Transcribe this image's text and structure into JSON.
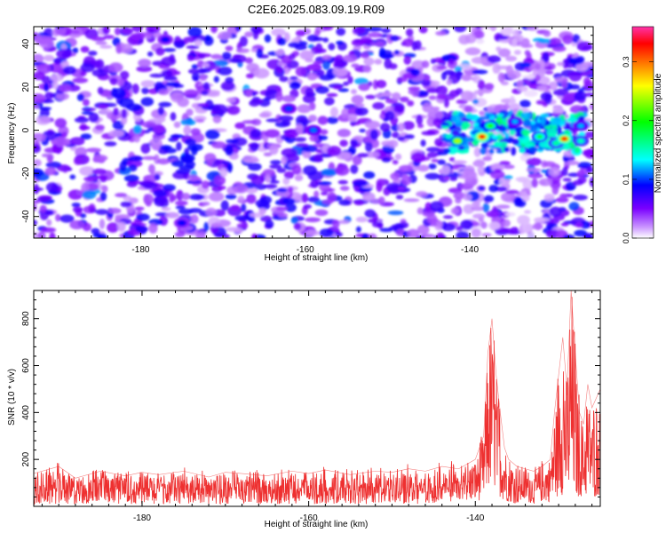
{
  "title": "C2E6.2025.083.09.19.R09",
  "chart_data": [
    {
      "type": "heatmap",
      "xlabel": "Height of straight line (km)",
      "ylabel": "Frequency (Hz)",
      "xlim": [
        -193,
        -125
      ],
      "ylim": [
        -50,
        48
      ],
      "x_ticks": [
        -180,
        -160,
        -140
      ],
      "y_ticks": [
        -40,
        -20,
        0,
        20,
        40
      ],
      "colorbar": {
        "label": "Normalized spectral amplitude",
        "range": [
          0.0,
          0.36
        ],
        "ticks": [
          0.0,
          0.1,
          0.2,
          0.3
        ],
        "tick_labels": [
          "0.0",
          "0.1",
          "0.2",
          "0.3"
        ],
        "colors": [
          "#ffffff",
          "#cc99ff",
          "#7a00ff",
          "#0000ff",
          "#00ffff",
          "#00ff00",
          "#ffff00",
          "#ff8000",
          "#ff0000",
          "#ff33aa"
        ]
      },
      "grid": false,
      "description": "Dense speckled background of weak amplitude (0.02-0.08) across the full range, with a band of strong signal (up to ~0.33) near 0 Hz from about -142 km to -127 km",
      "hotspots": [
        {
          "x": -141.5,
          "y": -5,
          "value": 0.24
        },
        {
          "x": -138.5,
          "y": -3,
          "value": 0.33
        },
        {
          "x": -137.5,
          "y": 2,
          "value": 0.2
        },
        {
          "x": -134.5,
          "y": 4,
          "value": 0.12
        },
        {
          "x": -131.5,
          "y": -3,
          "value": 0.18
        },
        {
          "x": -129.5,
          "y": -6,
          "value": 0.16
        },
        {
          "x": -128.5,
          "y": -4,
          "value": 0.32
        },
        {
          "x": -126.5,
          "y": -5,
          "value": 0.15
        },
        {
          "x": -126.5,
          "y": 2,
          "value": 0.12
        },
        {
          "x": -159,
          "y": 0,
          "value": 0.11
        },
        {
          "x": -162,
          "y": 10,
          "value": 0.1
        },
        {
          "x": -177,
          "y": 42,
          "value": 0.09
        },
        {
          "x": -175,
          "y": -43,
          "value": 0.09
        }
      ]
    },
    {
      "type": "line",
      "xlabel": "Height of straight line (km)",
      "ylabel": "SNR (10 * v/v)",
      "xlim": [
        -193,
        -125
      ],
      "ylim": [
        0,
        920
      ],
      "x_ticks": [
        -180,
        -160,
        -140
      ],
      "y_ticks": [
        200,
        400,
        600,
        800
      ],
      "color": "#ee3030",
      "grid": false,
      "series": [
        {
          "x": [
            -193,
            -190,
            -188,
            -185,
            -182,
            -180,
            -178,
            -175,
            -172,
            -170,
            -168,
            -165,
            -162,
            -160,
            -158,
            -155,
            -152,
            -150,
            -148,
            -146,
            -144,
            -142,
            -141,
            -140,
            -139,
            -138.5,
            -138,
            -137.5,
            -137,
            -136.5,
            -136,
            -135,
            -134,
            -133,
            -132,
            -131,
            -130.5,
            -130,
            -129.5,
            -129,
            -128.5,
            -128,
            -127.5,
            -127,
            -126.5,
            -126,
            -125.5,
            -125
          ],
          "y": [
            140,
            170,
            120,
            150,
            130,
            145,
            135,
            150,
            125,
            145,
            140,
            130,
            150,
            140,
            155,
            135,
            150,
            145,
            160,
            150,
            170,
            160,
            180,
            200,
            300,
            650,
            800,
            560,
            400,
            250,
            200,
            170,
            160,
            150,
            170,
            200,
            400,
            560,
            720,
            500,
            920,
            650,
            400,
            350,
            520,
            420,
            460,
            500
          ],
          "min": [
            10,
            10,
            10,
            10,
            10,
            10,
            10,
            10,
            10,
            10,
            10,
            10,
            10,
            10,
            10,
            10,
            10,
            10,
            10,
            10,
            20,
            20,
            20,
            20,
            30,
            60,
            80,
            60,
            40,
            20,
            20,
            10,
            20,
            10,
            20,
            20,
            30,
            40,
            50,
            40,
            30,
            30,
            40,
            40,
            30,
            30,
            40,
            40
          ]
        }
      ]
    }
  ]
}
